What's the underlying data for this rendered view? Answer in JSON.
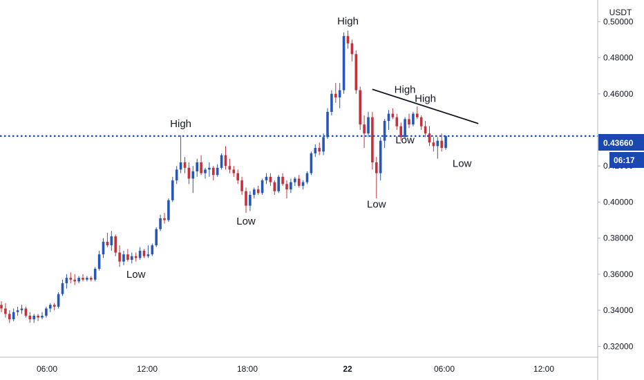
{
  "chart_data": {
    "type": "candlestick",
    "unit": "USDT",
    "ylim": [
      0.314,
      0.512
    ],
    "y_ticks": [
      "0.50000",
      "0.48000",
      "0.46000",
      "0.42000",
      "0.40000",
      "0.38000",
      "0.36000",
      "0.34000",
      "0.32000"
    ],
    "x_ticks": [
      "06:00",
      "12:00",
      "18:00",
      "22",
      "06:00",
      "12:00"
    ],
    "current_price_label": "0.43660",
    "countdown_label": "06:17",
    "current_price": 0.4366,
    "candles": [
      [
        0.343,
        0.345,
        0.339,
        0.341
      ],
      [
        0.341,
        0.344,
        0.336,
        0.338
      ],
      [
        0.338,
        0.34,
        0.333,
        0.335
      ],
      [
        0.335,
        0.341,
        0.334,
        0.339
      ],
      [
        0.339,
        0.342,
        0.337,
        0.34
      ],
      [
        0.34,
        0.343,
        0.338,
        0.341
      ],
      [
        0.341,
        0.342,
        0.336,
        0.337
      ],
      [
        0.337,
        0.339,
        0.333,
        0.335
      ],
      [
        0.335,
        0.338,
        0.333,
        0.337
      ],
      [
        0.337,
        0.338,
        0.334,
        0.336
      ],
      [
        0.336,
        0.339,
        0.335,
        0.337
      ],
      [
        0.337,
        0.342,
        0.336,
        0.341
      ],
      [
        0.341,
        0.344,
        0.339,
        0.343
      ],
      [
        0.343,
        0.344,
        0.34,
        0.342
      ],
      [
        0.342,
        0.35,
        0.341,
        0.349
      ],
      [
        0.349,
        0.357,
        0.348,
        0.355
      ],
      [
        0.355,
        0.36,
        0.352,
        0.358
      ],
      [
        0.358,
        0.361,
        0.355,
        0.357
      ],
      [
        0.357,
        0.36,
        0.354,
        0.356
      ],
      [
        0.356,
        0.359,
        0.355,
        0.358
      ],
      [
        0.358,
        0.36,
        0.356,
        0.357
      ],
      [
        0.357,
        0.359,
        0.356,
        0.358
      ],
      [
        0.358,
        0.359,
        0.356,
        0.357
      ],
      [
        0.357,
        0.364,
        0.356,
        0.363
      ],
      [
        0.363,
        0.373,
        0.362,
        0.371
      ],
      [
        0.371,
        0.38,
        0.369,
        0.378
      ],
      [
        0.378,
        0.383,
        0.375,
        0.376
      ],
      [
        0.376,
        0.384,
        0.373,
        0.381
      ],
      [
        0.381,
        0.382,
        0.37,
        0.372
      ],
      [
        0.372,
        0.376,
        0.364,
        0.367
      ],
      [
        0.367,
        0.373,
        0.365,
        0.371
      ],
      [
        0.371,
        0.374,
        0.367,
        0.368
      ],
      [
        0.368,
        0.372,
        0.366,
        0.37
      ],
      [
        0.37,
        0.372,
        0.367,
        0.369
      ],
      [
        0.369,
        0.375,
        0.368,
        0.373
      ],
      [
        0.373,
        0.374,
        0.369,
        0.37
      ],
      [
        0.37,
        0.376,
        0.369,
        0.371
      ],
      [
        0.371,
        0.377,
        0.37,
        0.376
      ],
      [
        0.376,
        0.386,
        0.375,
        0.385
      ],
      [
        0.385,
        0.393,
        0.384,
        0.391
      ],
      [
        0.391,
        0.394,
        0.388,
        0.39
      ],
      [
        0.39,
        0.402,
        0.389,
        0.401
      ],
      [
        0.401,
        0.414,
        0.4,
        0.412
      ],
      [
        0.412,
        0.42,
        0.41,
        0.418
      ],
      [
        0.418,
        0.437,
        0.416,
        0.422
      ],
      [
        0.422,
        0.425,
        0.416,
        0.419
      ],
      [
        0.419,
        0.422,
        0.41,
        0.413
      ],
      [
        0.413,
        0.42,
        0.405,
        0.417
      ],
      [
        0.417,
        0.424,
        0.414,
        0.422
      ],
      [
        0.422,
        0.426,
        0.415,
        0.416
      ],
      [
        0.416,
        0.419,
        0.413,
        0.418
      ],
      [
        0.418,
        0.422,
        0.414,
        0.419
      ],
      [
        0.419,
        0.42,
        0.412,
        0.415
      ],
      [
        0.415,
        0.421,
        0.414,
        0.419
      ],
      [
        0.419,
        0.427,
        0.418,
        0.426
      ],
      [
        0.426,
        0.431,
        0.418,
        0.42
      ],
      [
        0.42,
        0.424,
        0.416,
        0.418
      ],
      [
        0.418,
        0.42,
        0.414,
        0.416
      ],
      [
        0.416,
        0.418,
        0.41,
        0.412
      ],
      [
        0.412,
        0.414,
        0.404,
        0.406
      ],
      [
        0.406,
        0.408,
        0.394,
        0.398
      ],
      [
        0.398,
        0.406,
        0.395,
        0.404
      ],
      [
        0.404,
        0.408,
        0.402,
        0.407
      ],
      [
        0.407,
        0.409,
        0.404,
        0.405
      ],
      [
        0.405,
        0.413,
        0.404,
        0.412
      ],
      [
        0.412,
        0.416,
        0.41,
        0.414
      ],
      [
        0.414,
        0.416,
        0.409,
        0.411
      ],
      [
        0.411,
        0.412,
        0.404,
        0.406
      ],
      [
        0.406,
        0.415,
        0.405,
        0.414
      ],
      [
        0.414,
        0.416,
        0.409,
        0.41
      ],
      [
        0.41,
        0.412,
        0.402,
        0.407
      ],
      [
        0.407,
        0.413,
        0.405,
        0.411
      ],
      [
        0.411,
        0.414,
        0.409,
        0.413
      ],
      [
        0.413,
        0.415,
        0.408,
        0.409
      ],
      [
        0.409,
        0.412,
        0.407,
        0.411
      ],
      [
        0.411,
        0.417,
        0.41,
        0.416
      ],
      [
        0.416,
        0.428,
        0.415,
        0.427
      ],
      [
        0.427,
        0.432,
        0.425,
        0.43
      ],
      [
        0.43,
        0.433,
        0.426,
        0.428
      ],
      [
        0.428,
        0.438,
        0.426,
        0.436
      ],
      [
        0.436,
        0.452,
        0.435,
        0.45
      ],
      [
        0.45,
        0.462,
        0.448,
        0.46
      ],
      [
        0.46,
        0.466,
        0.455,
        0.458
      ],
      [
        0.458,
        0.466,
        0.452,
        0.462
      ],
      [
        0.462,
        0.494,
        0.46,
        0.492
      ],
      [
        0.492,
        0.495,
        0.485,
        0.488
      ],
      [
        0.488,
        0.49,
        0.478,
        0.482
      ],
      [
        0.482,
        0.484,
        0.46,
        0.462
      ],
      [
        0.462,
        0.464,
        0.44,
        0.443
      ],
      [
        0.443,
        0.448,
        0.43,
        0.438
      ],
      [
        0.438,
        0.45,
        0.436,
        0.447
      ],
      [
        0.447,
        0.45,
        0.418,
        0.422
      ],
      [
        0.422,
        0.425,
        0.402,
        0.416
      ],
      [
        0.416,
        0.436,
        0.412,
        0.434
      ],
      [
        0.434,
        0.446,
        0.43,
        0.445
      ],
      [
        0.445,
        0.451,
        0.44,
        0.449
      ],
      [
        0.449,
        0.452,
        0.446,
        0.447
      ],
      [
        0.447,
        0.449,
        0.44,
        0.442
      ],
      [
        0.442,
        0.444,
        0.434,
        0.436
      ],
      [
        0.436,
        0.447,
        0.435,
        0.446
      ],
      [
        0.446,
        0.449,
        0.441,
        0.443
      ],
      [
        0.443,
        0.45,
        0.442,
        0.449
      ],
      [
        0.449,
        0.453,
        0.446,
        0.447
      ],
      [
        0.447,
        0.448,
        0.44,
        0.442
      ],
      [
        0.442,
        0.445,
        0.436,
        0.438
      ],
      [
        0.438,
        0.442,
        0.431,
        0.433
      ],
      [
        0.433,
        0.436,
        0.428,
        0.431
      ],
      [
        0.431,
        0.436,
        0.424,
        0.434
      ],
      [
        0.434,
        0.438,
        0.428,
        0.43
      ],
      [
        0.43,
        0.437,
        0.429,
        0.4366
      ]
    ],
    "trendline": {
      "from": [
        91,
        0.4625
      ],
      "to": [
        117,
        0.4435
      ]
    },
    "annotations": [
      {
        "text": "High",
        "candle": 44,
        "price": 0.4415
      },
      {
        "text": "Low",
        "candle": 33,
        "price": 0.358
      },
      {
        "text": "Low",
        "candle": 60,
        "price": 0.3875
      },
      {
        "text": "High",
        "candle": 85,
        "price": 0.4985
      },
      {
        "text": "Low",
        "candle": 92,
        "price": 0.397
      },
      {
        "text": "High",
        "candle": 99,
        "price": 0.4605
      },
      {
        "text": "High",
        "candle": 104,
        "price": 0.4555
      },
      {
        "text": "Low",
        "candle": 99,
        "price": 0.4325
      },
      {
        "text": "Low",
        "candle": 113,
        "price": 0.4195
      }
    ]
  },
  "colors": {
    "up": "#2556b8",
    "down": "#c4303b",
    "price_line": "#1848b0",
    "trendline": "#131722",
    "axis_line": "#b2b5be"
  }
}
